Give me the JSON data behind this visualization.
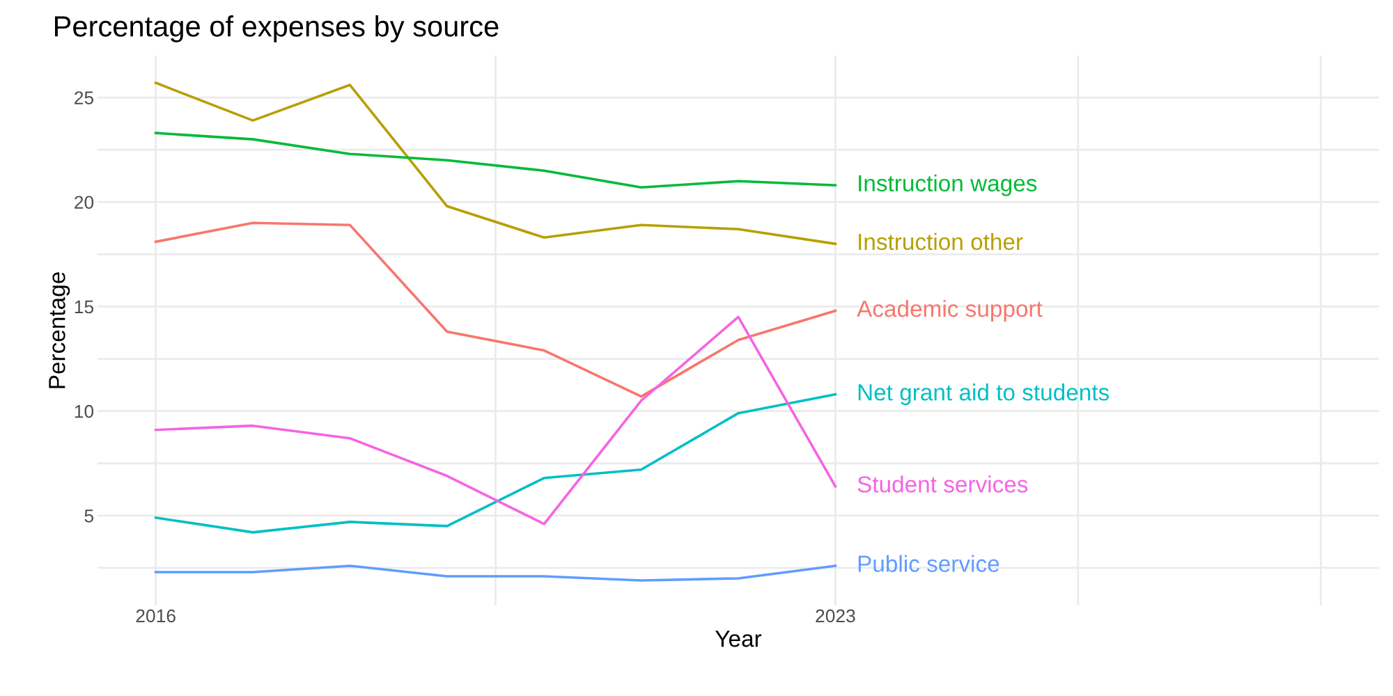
{
  "chart_data": {
    "type": "line",
    "title": "Percentage of expenses by source",
    "xlabel": "Year",
    "ylabel": "Percentage",
    "x": [
      2016,
      2017,
      2018,
      2019,
      2020,
      2021,
      2022,
      2023
    ],
    "series": [
      {
        "name": "Academic support",
        "color": "#f8766d",
        "values": [
          18.1,
          19.0,
          18.9,
          13.8,
          12.9,
          10.7,
          13.4,
          14.8
        ]
      },
      {
        "name": "Instruction other",
        "color": "#b79f00",
        "values": [
          25.7,
          23.9,
          25.6,
          19.8,
          18.3,
          18.9,
          18.7,
          18.0
        ]
      },
      {
        "name": "Instruction wages",
        "color": "#00ba38",
        "values": [
          23.3,
          23.0,
          22.3,
          22.0,
          21.5,
          20.7,
          21.0,
          20.8
        ]
      },
      {
        "name": "Net grant aid to students",
        "color": "#00bfc4",
        "values": [
          4.9,
          4.2,
          4.7,
          4.5,
          6.8,
          7.2,
          9.9,
          10.8
        ]
      },
      {
        "name": "Public service",
        "color": "#619cff",
        "values": [
          2.3,
          2.3,
          2.6,
          2.1,
          2.1,
          1.9,
          2.0,
          2.6
        ]
      },
      {
        "name": "Student services",
        "color": "#f564e3",
        "values": [
          9.1,
          9.3,
          8.7,
          6.9,
          4.6,
          10.5,
          14.5,
          6.4
        ]
      }
    ],
    "xlim": [
      2015.4,
      2028.6
    ],
    "ylim": [
      0.7,
      27
    ],
    "xticks": [
      2016,
      {
        "value": 2019.5,
        "label": null
      },
      2023,
      {
        "value": 2025.5,
        "label": null
      },
      {
        "value": 2028,
        "label": null
      }
    ],
    "yticks": [
      {
        "value": 2.5,
        "label": null
      },
      5,
      {
        "value": 7.5,
        "label": null
      },
      10,
      {
        "value": 12.5,
        "label": null
      },
      15,
      {
        "value": 17.5,
        "label": null
      },
      20,
      {
        "value": 22.5,
        "label": null
      },
      25
    ],
    "grid": true,
    "legend": false,
    "line_style": "solid",
    "marker": "none"
  }
}
